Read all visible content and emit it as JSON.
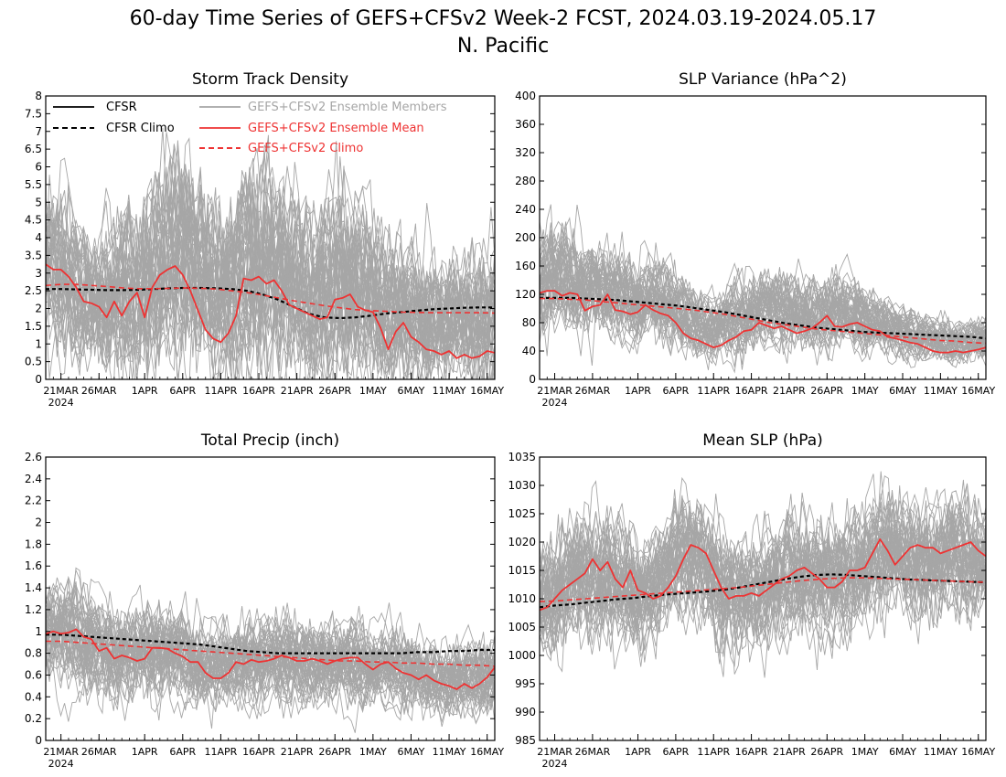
{
  "chart_data": {
    "type": "line",
    "title": "60-day Time Series of GEFS+CFSv2 Week-2 FCST, 2024.03.19-2024.05.17",
    "subtitle": "N. Pacific",
    "x_range": [
      "2024-03-19",
      "2024-05-17"
    ],
    "x_ticks": [
      "21MAR",
      "26MAR",
      "1APR",
      "6APR",
      "11APR",
      "16APR",
      "21APR",
      "26APR",
      "1MAY",
      "6MAY",
      "11MAY",
      "16MAY"
    ],
    "x_year_label": "2024",
    "legend": [
      {
        "name": "CFSR",
        "color": "#000000",
        "style": "solid"
      },
      {
        "name": "CFSR Climo",
        "color": "#000000",
        "style": "dashed"
      },
      {
        "name": "GEFS+CFSv2 Ensemble Members",
        "color": "#a6a6a6",
        "style": "solid"
      },
      {
        "name": "GEFS+CFSv2 Ensemble Mean",
        "color": "#ee3333",
        "style": "solid"
      },
      {
        "name": "GEFS+CFSv2 Climo",
        "color": "#ee3333",
        "style": "dashed"
      }
    ],
    "colors": {
      "members": "#a6a6a6",
      "mean": "#ee3333",
      "cfsr": "#000000"
    },
    "panels": [
      {
        "title": "Storm Track Density",
        "ylim": [
          0,
          8
        ],
        "yticks": [
          "0",
          "0.5",
          "1",
          "1.5",
          "2",
          "2.5",
          "3",
          "3.5",
          "4",
          "4.5",
          "5",
          "5.5",
          "6",
          "6.5",
          "7",
          "7.5",
          "8"
        ],
        "members_band": {
          "center": [
            3.3,
            3.1,
            2.7,
            2.4,
            2.3,
            2.2,
            2.5,
            2.6,
            2.6,
            2.7,
            2.9,
            3.2,
            3.4,
            3.2,
            2.8,
            2.4,
            2.3,
            2.9,
            3.2,
            3.3,
            3.2,
            2.9,
            2.6,
            2.4,
            2.5,
            2.7,
            2.8,
            2.6,
            2.3,
            2.1,
            2.0,
            1.9,
            1.7,
            1.6,
            1.5,
            1.4,
            1.5,
            1.6,
            1.7,
            1.8
          ],
          "spread": [
            1.5,
            1.6,
            1.5,
            1.4,
            1.3,
            1.4,
            1.6,
            1.7,
            1.8,
            1.9,
            2.0,
            2.1,
            2.0,
            1.9,
            1.8,
            1.7,
            1.8,
            2.0,
            2.1,
            2.2,
            2.1,
            2.0,
            1.9,
            1.8,
            1.8,
            1.9,
            1.9,
            1.8,
            1.7,
            1.6,
            1.5,
            1.5,
            1.4,
            1.4,
            1.3,
            1.3,
            1.3,
            1.3,
            1.4,
            1.4
          ]
        },
        "series": [
          {
            "name": "CFSR Climo",
            "role": "climo",
            "values": [
              2.55,
              2.55,
              2.54,
              2.53,
              2.52,
              2.52,
              2.53,
              2.55,
              2.57,
              2.58,
              2.58,
              2.57,
              2.55,
              2.5,
              2.4,
              2.25,
              2.05,
              1.85,
              1.75,
              1.73,
              1.75,
              1.8,
              1.86,
              1.9,
              1.94,
              1.98,
              2.0,
              2.02,
              2.03,
              2.03
            ]
          },
          {
            "name": "GEFS+CFSv2 Climo",
            "role": "fcst_climo",
            "values": [
              2.65,
              2.68,
              2.68,
              2.65,
              2.62,
              2.58,
              2.56,
              2.56,
              2.57,
              2.58,
              2.57,
              2.55,
              2.5,
              2.45,
              2.38,
              2.3,
              2.22,
              2.15,
              2.08,
              2.02,
              1.97,
              1.94,
              1.92,
              1.9,
              1.89,
              1.88,
              1.88,
              1.88,
              1.88,
              1.87
            ]
          },
          {
            "name": "GEFS+CFSv2 Ensemble Mean",
            "role": "mean",
            "values": [
              3.25,
              3.1,
              3.1,
              2.9,
              2.6,
              2.2,
              2.15,
              2.05,
              1.75,
              2.2,
              1.8,
              2.2,
              2.45,
              1.75,
              2.6,
              2.95,
              3.1,
              3.2,
              2.95,
              2.5,
              1.95,
              1.4,
              1.15,
              1.05,
              1.3,
              1.8,
              2.85,
              2.8,
              2.9,
              2.7,
              2.8,
              2.5,
              2.1,
              2.0,
              1.9,
              1.8,
              1.7,
              1.75,
              2.25,
              2.3,
              2.4,
              2.05,
              1.95,
              1.9,
              1.45,
              0.85,
              1.35,
              1.6,
              1.2,
              1.05,
              0.85,
              0.8,
              0.7,
              0.8,
              0.6,
              0.7,
              0.6,
              0.65,
              0.8,
              0.75
            ]
          }
        ]
      },
      {
        "title": "SLP Variance (hPa^2)",
        "ylim": [
          0,
          400
        ],
        "yticks": [
          "0",
          "40",
          "80",
          "120",
          "160",
          "200",
          "240",
          "280",
          "320",
          "360",
          "400"
        ],
        "members_band": {
          "center": [
            145,
            150,
            148,
            143,
            138,
            132,
            126,
            120,
            116,
            118,
            121,
            115,
            103,
            90,
            80,
            78,
            85,
            92,
            95,
            98,
            100,
            98,
            96,
            95,
            94,
            96,
            100,
            98,
            92,
            85,
            80,
            75,
            70,
            66,
            62,
            58,
            56,
            55,
            57,
            60
          ],
          "spread": [
            50,
            52,
            52,
            50,
            48,
            46,
            44,
            42,
            40,
            40,
            40,
            38,
            35,
            32,
            30,
            30,
            32,
            34,
            35,
            36,
            36,
            35,
            34,
            33,
            33,
            33,
            34,
            33,
            31,
            29,
            27,
            25,
            23,
            22,
            21,
            20,
            19,
            19,
            20,
            21
          ]
        },
        "series": [
          {
            "name": "CFSR Climo",
            "role": "climo",
            "values": [
              115,
              115,
              115,
              114,
              113,
              112,
              110,
              108,
              106,
              104,
              101,
              98,
              95,
              91,
              87,
              83,
              79,
              76,
              73,
              71,
              69,
              67,
              66,
              65,
              64,
              63,
              62,
              61,
              60,
              58
            ]
          },
          {
            "name": "GEFS+CFSv2 Climo",
            "role": "fcst_climo",
            "values": [
              114,
              114,
              113,
              112,
              110,
              108,
              106,
              104,
              102,
              100,
              98,
              95,
              92,
              88,
              84,
              80,
              77,
              74,
              71,
              69,
              67,
              65,
              63,
              61,
              59,
              57,
              55,
              54,
              52,
              51
            ]
          },
          {
            "name": "GEFS+CFSv2 Ensemble Mean",
            "role": "mean",
            "values": [
              122,
              125,
              125,
              118,
              122,
              120,
              97,
              103,
              105,
              120,
              98,
              96,
              92,
              95,
              105,
              98,
              93,
              90,
              80,
              65,
              58,
              55,
              50,
              45,
              48,
              55,
              60,
              68,
              70,
              80,
              76,
              72,
              75,
              70,
              65,
              68,
              72,
              80,
              90,
              75,
              74,
              78,
              80,
              75,
              70,
              68,
              60,
              58,
              55,
              52,
              50,
              45,
              40,
              38,
              38,
              40,
              38,
              40,
              42,
              45
            ]
          }
        ]
      },
      {
        "title": "Total Precip (inch)",
        "ylim": [
          0,
          2.6
        ],
        "yticks": [
          "0",
          "0.2",
          "0.4",
          "0.6",
          "0.8",
          "1",
          "1.2",
          "1.4",
          "1.6",
          "1.8",
          "2",
          "2.2",
          "2.4",
          "2.6"
        ],
        "members_band": {
          "center": [
            1.0,
            1.02,
            1.0,
            0.96,
            0.9,
            0.84,
            0.8,
            0.8,
            0.83,
            0.85,
            0.85,
            0.82,
            0.77,
            0.72,
            0.68,
            0.65,
            0.66,
            0.7,
            0.74,
            0.76,
            0.76,
            0.74,
            0.72,
            0.71,
            0.72,
            0.74,
            0.74,
            0.72,
            0.7,
            0.68,
            0.66,
            0.64,
            0.61,
            0.58,
            0.56,
            0.55,
            0.55,
            0.56,
            0.58,
            0.6
          ],
          "spread": [
            0.32,
            0.33,
            0.33,
            0.32,
            0.31,
            0.3,
            0.29,
            0.29,
            0.3,
            0.3,
            0.3,
            0.29,
            0.28,
            0.27,
            0.26,
            0.25,
            0.25,
            0.26,
            0.27,
            0.27,
            0.27,
            0.26,
            0.26,
            0.26,
            0.26,
            0.26,
            0.26,
            0.26,
            0.25,
            0.25,
            0.24,
            0.24,
            0.23,
            0.23,
            0.22,
            0.22,
            0.22,
            0.22,
            0.23,
            0.23
          ]
        },
        "series": [
          {
            "name": "CFSR Climo",
            "role": "climo",
            "values": [
              0.97,
              0.97,
              0.96,
              0.95,
              0.94,
              0.93,
              0.92,
              0.91,
              0.9,
              0.89,
              0.88,
              0.86,
              0.84,
              0.82,
              0.81,
              0.8,
              0.8,
              0.8,
              0.8,
              0.8,
              0.8,
              0.8,
              0.8,
              0.8,
              0.81,
              0.81,
              0.82,
              0.82,
              0.83,
              0.83
            ]
          },
          {
            "name": "GEFS+CFSv2 Climo",
            "role": "fcst_climo",
            "values": [
              0.91,
              0.91,
              0.9,
              0.89,
              0.88,
              0.87,
              0.86,
              0.85,
              0.84,
              0.83,
              0.82,
              0.81,
              0.8,
              0.79,
              0.78,
              0.77,
              0.76,
              0.75,
              0.74,
              0.73,
              0.73,
              0.72,
              0.72,
              0.71,
              0.71,
              0.7,
              0.7,
              0.69,
              0.69,
              0.68
            ]
          },
          {
            "name": "GEFS+CFSv2 Ensemble Mean",
            "role": "mean",
            "values": [
              0.98,
              1.0,
              0.98,
              0.99,
              1.02,
              0.95,
              0.93,
              0.82,
              0.85,
              0.75,
              0.78,
              0.76,
              0.73,
              0.75,
              0.85,
              0.85,
              0.84,
              0.8,
              0.77,
              0.72,
              0.72,
              0.62,
              0.57,
              0.57,
              0.62,
              0.72,
              0.7,
              0.74,
              0.72,
              0.73,
              0.75,
              0.78,
              0.76,
              0.73,
              0.73,
              0.75,
              0.73,
              0.7,
              0.73,
              0.75,
              0.76,
              0.76,
              0.7,
              0.65,
              0.7,
              0.72,
              0.66,
              0.62,
              0.6,
              0.56,
              0.6,
              0.55,
              0.52,
              0.5,
              0.47,
              0.52,
              0.48,
              0.52,
              0.58,
              0.67
            ]
          }
        ]
      },
      {
        "title": "Mean SLP (hPa)",
        "ylim": [
          985,
          1035
        ],
        "yticks": [
          "985",
          "990",
          "995",
          "1000",
          "1005",
          "1010",
          "1015",
          "1020",
          "1025",
          "1030",
          "1035"
        ],
        "members_band": {
          "center": [
            1009,
            1010,
            1012,
            1014,
            1015,
            1015,
            1014,
            1013,
            1012,
            1011,
            1012,
            1015,
            1018,
            1019,
            1017,
            1014,
            1012,
            1011,
            1011,
            1012,
            1013,
            1014,
            1015,
            1015,
            1014,
            1013,
            1013,
            1014,
            1016,
            1018,
            1019,
            1019,
            1018,
            1017,
            1017,
            1018,
            1019,
            1019,
            1018,
            1017
          ],
          "spread": [
            7,
            7,
            7,
            7,
            7,
            7,
            7,
            7,
            7,
            7,
            7,
            7,
            7,
            7,
            7,
            7,
            7,
            7,
            7,
            7,
            7,
            7,
            7,
            7,
            7,
            7,
            7,
            7,
            7,
            7,
            7,
            7,
            7,
            7,
            7,
            7,
            7,
            7,
            7,
            7
          ]
        },
        "series": [
          {
            "name": "CFSR Climo",
            "role": "climo",
            "values": [
              1008.5,
              1008.8,
              1009.0,
              1009.3,
              1009.6,
              1009.9,
              1010.1,
              1010.4,
              1010.7,
              1010.9,
              1011.1,
              1011.3,
              1011.6,
              1012.0,
              1012.5,
              1013.0,
              1013.5,
              1013.9,
              1014.2,
              1014.3,
              1014.2,
              1014.0,
              1013.8,
              1013.6,
              1013.4,
              1013.3,
              1013.2,
              1013.1,
              1013.0,
              1012.9
            ]
          },
          {
            "name": "GEFS+CFSv2 Climo",
            "role": "fcst_climo",
            "values": [
              1009.5,
              1009.6,
              1009.8,
              1010.0,
              1010.2,
              1010.4,
              1010.6,
              1010.8,
              1011.0,
              1011.2,
              1011.4,
              1011.6,
              1011.8,
              1012.0,
              1012.3,
              1012.6,
              1012.9,
              1013.2,
              1013.4,
              1013.6,
              1013.7,
              1013.7,
              1013.6,
              1013.5,
              1013.4,
              1013.3,
              1013.2,
              1013.1,
              1013.0,
              1012.9
            ]
          },
          {
            "name": "GEFS+CFSv2 Ensemble Mean",
            "role": "mean",
            "values": [
              1008.0,
              1008.5,
              1010.0,
              1011.5,
              1012.5,
              1013.5,
              1014.5,
              1017.0,
              1015.0,
              1016.5,
              1013.5,
              1012.0,
              1015.0,
              1011.5,
              1011.0,
              1010.0,
              1010.5,
              1012.0,
              1014.0,
              1017.0,
              1019.5,
              1019.0,
              1018.0,
              1015.0,
              1012.0,
              1010.0,
              1010.5,
              1010.5,
              1011.0,
              1010.5,
              1011.5,
              1012.5,
              1013.5,
              1014.0,
              1015.0,
              1015.5,
              1014.5,
              1013.5,
              1012.0,
              1012.0,
              1013.0,
              1015.0,
              1015.0,
              1015.5,
              1018.0,
              1020.5,
              1018.5,
              1016.0,
              1017.5,
              1019.0,
              1019.5,
              1019.0,
              1019.0,
              1018.0,
              1018.5,
              1019.0,
              1019.5,
              1020.0,
              1018.5,
              1017.5
            ]
          }
        ]
      }
    ]
  }
}
